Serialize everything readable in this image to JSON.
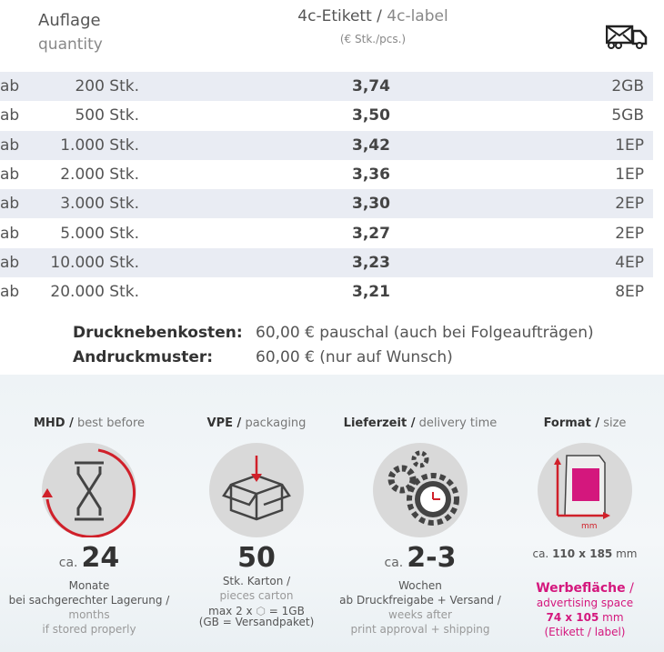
{
  "header": {
    "quantity_de": "Auflage",
    "quantity_en": "quantity",
    "price_de": "4c-Etikett /",
    "price_en": "4c-label",
    "price_unit": "(€ Stk./pcs.)",
    "shipping_icon": "mail-truck-icon"
  },
  "rows": [
    {
      "prefix": "ab",
      "qty": "200 Stk.",
      "price": "3,74",
      "ship": "2GB"
    },
    {
      "prefix": "ab",
      "qty": "500 Stk.",
      "price": "3,50",
      "ship": "5GB"
    },
    {
      "prefix": "ab",
      "qty": "1.000 Stk.",
      "price": "3,42",
      "ship": "1EP"
    },
    {
      "prefix": "ab",
      "qty": "2.000 Stk.",
      "price": "3,36",
      "ship": "1EP"
    },
    {
      "prefix": "ab",
      "qty": "3.000 Stk.",
      "price": "3,30",
      "ship": "2EP"
    },
    {
      "prefix": "ab",
      "qty": "5.000 Stk.",
      "price": "3,27",
      "ship": "2EP"
    },
    {
      "prefix": "ab",
      "qty": "10.000 Stk.",
      "price": "3,23",
      "ship": "4EP"
    },
    {
      "prefix": "ab",
      "qty": "20.000 Stk.",
      "price": "3,21",
      "ship": "8EP"
    }
  ],
  "notes": [
    {
      "label": "Drucknebenkosten:",
      "value": "60,00 € pauschal (auch bei Folgeaufträgen)"
    },
    {
      "label": "Andruckmuster:",
      "value": "60,00 € (nur auf Wunsch)"
    }
  ],
  "features": {
    "mhd": {
      "title_de": "MHD /",
      "title_en": "best before",
      "ca": "ca.",
      "value": "24",
      "l1": "Monate",
      "l2": "bei sachgerechter Lagerung /",
      "l3": "months",
      "l4": "if stored properly"
    },
    "vpe": {
      "title_de": "VPE /",
      "title_en": "packaging",
      "value": "50",
      "l1": "Stk. Karton /",
      "l2": "pieces carton",
      "l3a": "max 2 x",
      "l3b": "= 1GB",
      "l4": "(GB = Versandpaket)"
    },
    "delivery": {
      "title_de": "Lieferzeit /",
      "title_en": "delivery time",
      "ca": "ca.",
      "value": "2-3",
      "l1": "Wochen",
      "l2": "ab Druckfreigabe + Versand /",
      "l3": "weeks after",
      "l4": "print approval + shipping"
    },
    "format": {
      "title_de": "Format /",
      "title_en": "size",
      "mm": "mm",
      "size_ca": "ca.",
      "size_val": "110 x 185",
      "size_unit": "mm",
      "adv_de": "Werbefläche",
      "adv_sep": "/",
      "adv_en": "advertising space",
      "adv_val": "74 x 105",
      "adv_unit": "mm",
      "adv_note": "(Etikett / label)"
    }
  },
  "colors": {
    "accent": "#d4177d",
    "red": "#d0202a",
    "row_alt": "#e9ecf3"
  }
}
